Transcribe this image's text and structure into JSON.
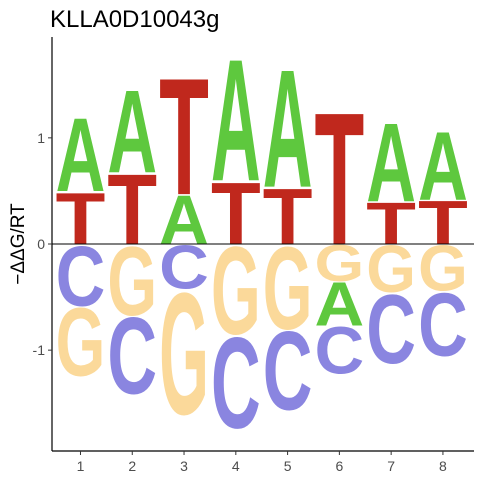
{
  "chart_data": {
    "type": "sequence-logo",
    "title": "KLLA0D10043g",
    "ylabel": "−ΔΔG/RT",
    "ylim": [
      -1.95,
      1.95
    ],
    "yticks": [
      -1,
      0,
      1
    ],
    "xticks": [
      1,
      2,
      3,
      4,
      5,
      6,
      7,
      8
    ],
    "colors": {
      "A": "#5ec83e",
      "C": "#8a85e0",
      "G": "#fbd99a",
      "T": "#c0281d"
    },
    "positions": [
      {
        "pos": 1,
        "positive": [
          {
            "letter": "T",
            "height": 0.5
          },
          {
            "letter": "A",
            "height": 0.71
          }
        ],
        "negative": [
          {
            "letter": "C",
            "height": 0.58
          },
          {
            "letter": "G",
            "height": 0.66
          }
        ]
      },
      {
        "pos": 2,
        "positive": [
          {
            "letter": "T",
            "height": 0.68
          },
          {
            "letter": "A",
            "height": 0.8
          }
        ],
        "negative": [
          {
            "letter": "G",
            "height": 0.67
          },
          {
            "letter": "C",
            "height": 0.74
          }
        ]
      },
      {
        "pos": 3,
        "positive": [
          {
            "letter": "A",
            "height": 0.47
          },
          {
            "letter": "T",
            "height": 1.13
          }
        ],
        "negative": [
          {
            "letter": "C",
            "height": 0.42
          },
          {
            "letter": "G",
            "height": 1.18
          }
        ]
      },
      {
        "pos": 4,
        "positive": [
          {
            "letter": "T",
            "height": 0.6
          },
          {
            "letter": "A",
            "height": 1.18
          }
        ],
        "negative": [
          {
            "letter": "G",
            "height": 0.85
          },
          {
            "letter": "C",
            "height": 0.88
          }
        ]
      },
      {
        "pos": 5,
        "positive": [
          {
            "letter": "T",
            "height": 0.54
          },
          {
            "letter": "A",
            "height": 1.14
          }
        ],
        "negative": [
          {
            "letter": "G",
            "height": 0.8
          },
          {
            "letter": "C",
            "height": 0.76
          }
        ]
      },
      {
        "pos": 6,
        "positive": [
          {
            "letter": "T",
            "height": 1.28
          }
        ],
        "negative": [
          {
            "letter": "G",
            "height": 0.35
          },
          {
            "letter": "A",
            "height": 0.42
          },
          {
            "letter": "C",
            "height": 0.45
          }
        ]
      },
      {
        "pos": 7,
        "positive": [
          {
            "letter": "T",
            "height": 0.4
          },
          {
            "letter": "A",
            "height": 0.76
          }
        ],
        "negative": [
          {
            "letter": "G",
            "height": 0.45
          },
          {
            "letter": "C",
            "height": 0.67
          }
        ]
      },
      {
        "pos": 8,
        "positive": [
          {
            "letter": "T",
            "height": 0.42
          },
          {
            "letter": "A",
            "height": 0.66
          }
        ],
        "negative": [
          {
            "letter": "G",
            "height": 0.44
          },
          {
            "letter": "C",
            "height": 0.61
          }
        ]
      }
    ]
  }
}
